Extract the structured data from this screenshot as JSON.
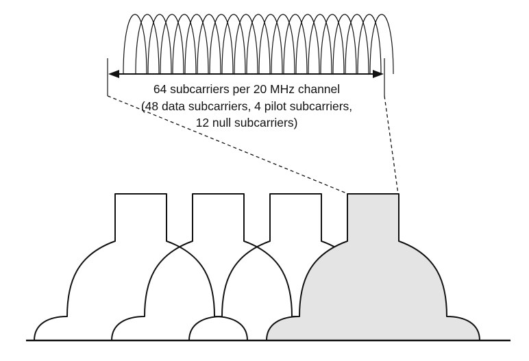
{
  "labels": {
    "line1": "64 subcarriers per 20 MHz channel",
    "line2": "(48 data subcarriers, 4 pilot subcarriers,",
    "line3": "12 null subcarriers)"
  },
  "channels": {
    "count": 4,
    "highlighted_index": 3
  },
  "colors": {
    "highlight_fill": "#e4e4e4",
    "line": "#111111"
  }
}
